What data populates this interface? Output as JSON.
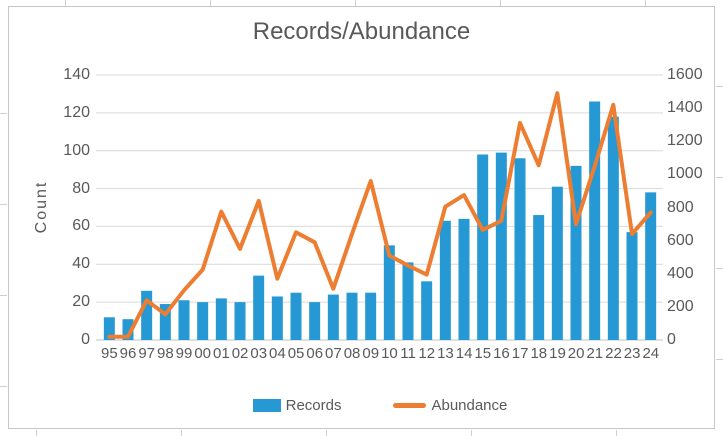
{
  "colors": {
    "bar": "#2699d5",
    "line": "#ed7d31",
    "text": "#595959",
    "gridline": "#d9d9d9",
    "axis_line": "#c2c2c2",
    "frame_border": "#c9c7c5"
  },
  "chart_data": {
    "type": "combo",
    "title": "Records/Abundance",
    "ylabel_left": "Count",
    "ylabel_right": "",
    "grid": true,
    "legend_position": "bottom",
    "categories": [
      "95",
      "96",
      "97",
      "98",
      "99",
      "00",
      "01",
      "02",
      "03",
      "04",
      "05",
      "06",
      "07",
      "08",
      "09",
      "10",
      "11",
      "12",
      "13",
      "14",
      "15",
      "16",
      "17",
      "18",
      "19",
      "20",
      "21",
      "22",
      "23",
      "24"
    ],
    "y_left": {
      "min": 0,
      "max": 140,
      "step": 20,
      "ticks": [
        0,
        20,
        40,
        60,
        80,
        100,
        120,
        140
      ]
    },
    "y_right": {
      "min": 0,
      "max": 1600,
      "step": 200,
      "ticks": [
        0,
        200,
        400,
        600,
        800,
        1000,
        1200,
        1400,
        1600
      ]
    },
    "series": [
      {
        "name": "Records",
        "type": "bar",
        "axis": "left",
        "color": "#2699d5",
        "values": [
          12,
          11,
          26,
          19,
          21,
          20,
          22,
          20,
          34,
          23,
          25,
          20,
          24,
          25,
          25,
          50,
          41,
          31,
          63,
          64,
          98,
          99,
          96,
          66,
          81,
          92,
          126,
          118,
          57,
          78
        ]
      },
      {
        "name": "Abundance",
        "type": "line",
        "axis": "right",
        "color": "#ed7d31",
        "values": [
          20,
          20,
          240,
          155,
          300,
          425,
          775,
          550,
          840,
          370,
          650,
          590,
          310,
          640,
          960,
          510,
          450,
          395,
          805,
          875,
          665,
          720,
          1310,
          1055,
          1490,
          700,
          1050,
          1420,
          640,
          770
        ]
      }
    ]
  }
}
